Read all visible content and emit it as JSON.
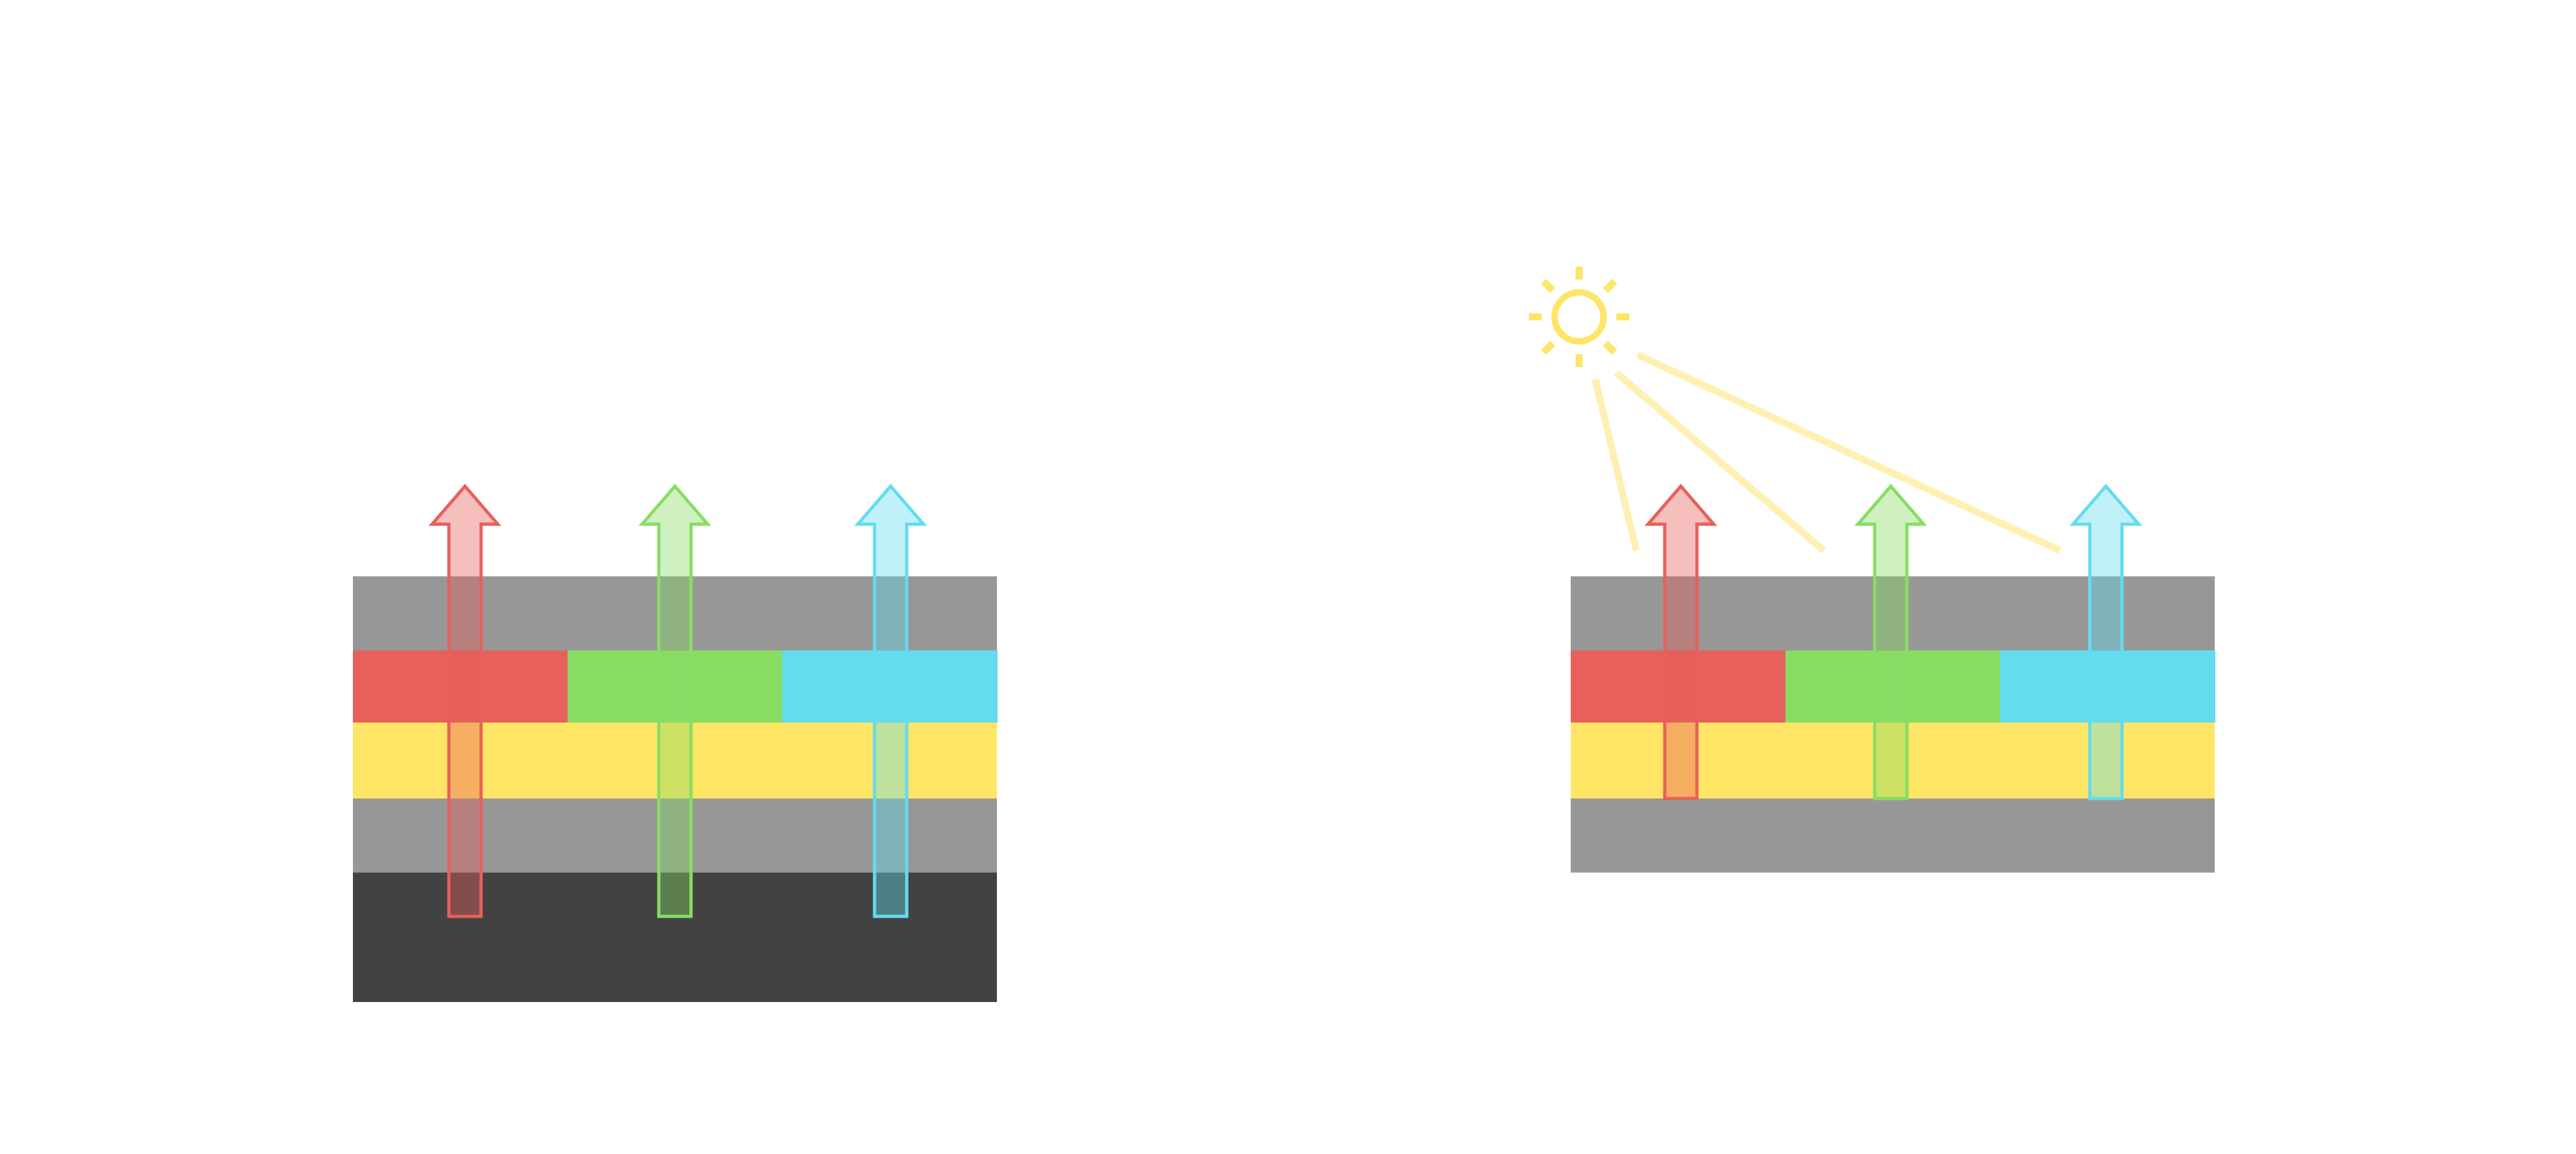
{
  "diagram": {
    "colors": {
      "background": "#ffffff",
      "gray_layer": "#979797",
      "dark_layer": "#424242",
      "red": "#E7605B",
      "green": "#88DD63",
      "cyan": "#63DCEE",
      "yellow": "#FEE566",
      "light_ray": "#FEF0B3"
    },
    "left_stack": {
      "layers": [
        "gray",
        "red-green-cyan",
        "yellow",
        "gray",
        "dark"
      ],
      "arrows": [
        "red",
        "green",
        "cyan"
      ]
    },
    "right_stack": {
      "layers": [
        "gray",
        "red-green-cyan",
        "yellow",
        "gray"
      ],
      "arrows": [
        "red",
        "green",
        "cyan"
      ],
      "light_source": "sun-icon",
      "light_rays": 3
    }
  }
}
